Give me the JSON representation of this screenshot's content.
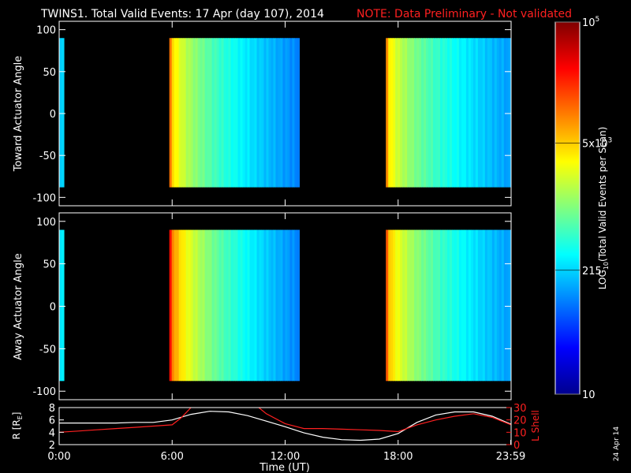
{
  "title": "TWINS1. Total Valid Events: 17 Apr (day 107), 2014",
  "note": "NOTE: Data Preliminary - Not validated",
  "date_stamp": "24 Apr 14",
  "colors": {
    "note": "#ff2020",
    "lshell": "#ff2020",
    "radius": "#ffffff",
    "background": "#000000"
  },
  "colorbar": {
    "label": "LOG10(Total Valid Events per Scan)",
    "label_base": "LOG",
    "label_sub": "10",
    "label_rest": "(Total Valid Events per Scan)",
    "ticks": [
      {
        "label": "10",
        "value": 10
      },
      {
        "label": "215",
        "value": 215
      },
      {
        "label": "5x10^3",
        "value": 5000
      },
      {
        "label": "10^5",
        "value": 100000
      }
    ],
    "colormap": "jet",
    "scale": "log"
  },
  "chart_data": [
    {
      "type": "heatmap",
      "panel": "toward",
      "ylabel": "Toward Actuator Angle",
      "ylim": [
        -110,
        110
      ],
      "yticks": [
        "100",
        "50",
        "0",
        "-50",
        "-100"
      ],
      "xlim": [
        0,
        24
      ],
      "data_angle_range": [
        -88,
        90
      ],
      "segments": [
        {
          "start_hour": 0.0,
          "end_hour": 0.25,
          "level_log10": 2.3
        },
        {
          "start_hour": 5.85,
          "end_hour": 12.75,
          "level_log10_start": 4.0,
          "level_log10_end": 2.0
        },
        {
          "start_hour": 17.35,
          "end_hour": 23.99,
          "level_log10_start": 3.9,
          "level_log10_end": 2.1
        }
      ]
    },
    {
      "type": "heatmap",
      "panel": "away",
      "ylabel": "Away Actuator Angle",
      "ylim": [
        -110,
        110
      ],
      "yticks": [
        "100",
        "50",
        "0",
        "-50",
        "-100"
      ],
      "xlim": [
        0,
        24
      ],
      "data_angle_range": [
        -88,
        90
      ],
      "segments": [
        {
          "start_hour": 0.0,
          "end_hour": 0.25,
          "level_log10": 2.4
        },
        {
          "start_hour": 5.85,
          "end_hour": 12.75,
          "level_log10_start": 4.4,
          "level_log10_end": 2.0
        },
        {
          "start_hour": 17.35,
          "end_hour": 23.99,
          "level_log10_start": 4.1,
          "level_log10_end": 2.1
        }
      ]
    },
    {
      "type": "line",
      "panel": "orbit",
      "xlabel": "Time (UT)",
      "xticks": [
        "0:00",
        "6:00",
        "12:00",
        "18:00",
        "23:59"
      ],
      "xtick_hours": [
        0,
        6,
        12,
        18,
        23.98
      ],
      "ylabel_left": "R [RE]",
      "ylabel_left_base": "R [R",
      "ylabel_left_sub": "E",
      "ylabel_left_end": "]",
      "ylim_left": [
        2,
        8
      ],
      "yticks_left": [
        "8",
        "6",
        "4",
        "2"
      ],
      "ylabel_right": "L Shell",
      "ylim_right": [
        0,
        30
      ],
      "yticks_right": [
        "30",
        "20",
        "10",
        "0"
      ],
      "series": [
        {
          "axis": "left",
          "x": [
            0,
            1,
            2,
            3,
            4,
            5,
            6,
            7,
            8,
            9,
            10,
            11,
            12,
            13,
            14,
            15,
            16,
            17,
            18,
            19,
            20,
            21,
            22,
            23,
            24
          ],
          "y": [
            5.5,
            5.5,
            5.5,
            5.5,
            5.6,
            5.6,
            6.0,
            6.9,
            7.4,
            7.3,
            6.7,
            5.8,
            4.9,
            3.9,
            3.2,
            2.8,
            2.7,
            2.9,
            3.8,
            5.6,
            6.8,
            7.3,
            7.3,
            6.6,
            5.3
          ]
        },
        {
          "axis": "right",
          "x": [
            0,
            1,
            2,
            3,
            4,
            5,
            6,
            6.5,
            7,
            7.2,
            10.3,
            10.6,
            11,
            12,
            13,
            14,
            15,
            16,
            17,
            18,
            19,
            20,
            21,
            22,
            23,
            24
          ],
          "y": [
            10,
            11,
            12,
            13,
            14,
            15,
            16,
            22,
            30,
            33,
            33,
            30,
            25,
            17,
            13,
            13,
            12.5,
            12,
            11.5,
            10.5,
            16,
            20,
            23,
            25,
            22,
            16
          ]
        }
      ]
    }
  ]
}
